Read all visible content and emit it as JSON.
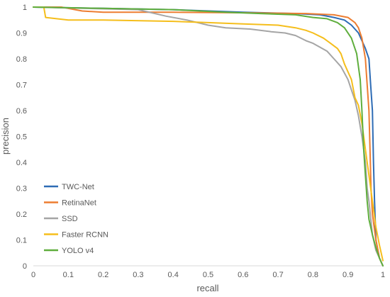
{
  "chart_data": {
    "type": "line",
    "title": "",
    "xlabel": "recall",
    "ylabel": "precision",
    "xlim": [
      0,
      1
    ],
    "ylim": [
      0,
      1
    ],
    "x_ticks": [
      "0",
      "0.1",
      "0.2",
      "0.3",
      "0.4",
      "0.5",
      "0.6",
      "0.7",
      "0.8",
      "0.9",
      "1"
    ],
    "y_ticks": [
      "0",
      "0.1",
      "0.2",
      "0.3",
      "0.4",
      "0.5",
      "0.6",
      "0.7",
      "0.8",
      "0.9",
      "1"
    ],
    "grid": false,
    "legend_position": "bottom-left",
    "series": [
      {
        "name": "TWC-Net",
        "color": "#2E6CB5",
        "points": [
          [
            0,
            1
          ],
          [
            0.2,
            0.995
          ],
          [
            0.4,
            0.99
          ],
          [
            0.6,
            0.98
          ],
          [
            0.75,
            0.975
          ],
          [
            0.82,
            0.97
          ],
          [
            0.86,
            0.96
          ],
          [
            0.89,
            0.95
          ],
          [
            0.91,
            0.93
          ],
          [
            0.93,
            0.9
          ],
          [
            0.94,
            0.87
          ],
          [
            0.95,
            0.84
          ],
          [
            0.96,
            0.8
          ],
          [
            0.965,
            0.7
          ],
          [
            0.97,
            0.6
          ],
          [
            0.973,
            0.4
          ],
          [
            0.976,
            0.25
          ],
          [
            0.98,
            0.1
          ],
          [
            0.99,
            0.03
          ],
          [
            1,
            0
          ]
        ]
      },
      {
        "name": "RetinaNet",
        "color": "#ED7D31",
        "points": [
          [
            0,
            1
          ],
          [
            0.08,
            1
          ],
          [
            0.14,
            0.985
          ],
          [
            0.2,
            0.98
          ],
          [
            0.4,
            0.98
          ],
          [
            0.6,
            0.978
          ],
          [
            0.78,
            0.975
          ],
          [
            0.86,
            0.97
          ],
          [
            0.9,
            0.96
          ],
          [
            0.92,
            0.94
          ],
          [
            0.93,
            0.92
          ],
          [
            0.94,
            0.88
          ],
          [
            0.95,
            0.8
          ],
          [
            0.955,
            0.7
          ],
          [
            0.96,
            0.6
          ],
          [
            0.963,
            0.45
          ],
          [
            0.966,
            0.3
          ],
          [
            0.97,
            0.2
          ],
          [
            0.98,
            0.1
          ],
          [
            0.99,
            0.03
          ],
          [
            1,
            0
          ]
        ]
      },
      {
        "name": "SSD",
        "color": "#A5A5A5",
        "points": [
          [
            0,
            1
          ],
          [
            0.3,
            0.99
          ],
          [
            0.38,
            0.965
          ],
          [
            0.44,
            0.95
          ],
          [
            0.5,
            0.93
          ],
          [
            0.55,
            0.92
          ],
          [
            0.62,
            0.915
          ],
          [
            0.68,
            0.905
          ],
          [
            0.72,
            0.9
          ],
          [
            0.75,
            0.89
          ],
          [
            0.78,
            0.87
          ],
          [
            0.8,
            0.86
          ],
          [
            0.82,
            0.845
          ],
          [
            0.84,
            0.83
          ],
          [
            0.86,
            0.8
          ],
          [
            0.88,
            0.77
          ],
          [
            0.9,
            0.72
          ],
          [
            0.91,
            0.68
          ],
          [
            0.92,
            0.64
          ],
          [
            0.93,
            0.58
          ],
          [
            0.94,
            0.5
          ],
          [
            0.945,
            0.45
          ],
          [
            0.95,
            0.4
          ],
          [
            0.955,
            0.3
          ],
          [
            0.96,
            0.25
          ],
          [
            0.97,
            0.12
          ],
          [
            0.98,
            0.06
          ],
          [
            0.99,
            0.03
          ],
          [
            1,
            0
          ]
        ]
      },
      {
        "name": "Faster RCNN",
        "color": "#F5BE1C",
        "points": [
          [
            0,
            1
          ],
          [
            0.03,
            1
          ],
          [
            0.035,
            0.96
          ],
          [
            0.1,
            0.95
          ],
          [
            0.2,
            0.95
          ],
          [
            0.4,
            0.945
          ],
          [
            0.5,
            0.94
          ],
          [
            0.6,
            0.935
          ],
          [
            0.7,
            0.93
          ],
          [
            0.75,
            0.92
          ],
          [
            0.78,
            0.91
          ],
          [
            0.8,
            0.9
          ],
          [
            0.83,
            0.88
          ],
          [
            0.85,
            0.86
          ],
          [
            0.87,
            0.84
          ],
          [
            0.88,
            0.82
          ],
          [
            0.89,
            0.78
          ],
          [
            0.9,
            0.75
          ],
          [
            0.91,
            0.72
          ],
          [
            0.92,
            0.65
          ],
          [
            0.93,
            0.62
          ],
          [
            0.94,
            0.55
          ],
          [
            0.945,
            0.5
          ],
          [
            0.95,
            0.45
          ],
          [
            0.96,
            0.35
          ],
          [
            0.97,
            0.25
          ],
          [
            0.98,
            0.15
          ],
          [
            0.99,
            0.08
          ],
          [
            1,
            0.02
          ]
        ]
      },
      {
        "name": "YOLO v4",
        "color": "#5FAE3D",
        "points": [
          [
            0,
            1
          ],
          [
            0.2,
            0.995
          ],
          [
            0.4,
            0.99
          ],
          [
            0.55,
            0.98
          ],
          [
            0.65,
            0.975
          ],
          [
            0.75,
            0.97
          ],
          [
            0.8,
            0.96
          ],
          [
            0.84,
            0.955
          ],
          [
            0.87,
            0.94
          ],
          [
            0.89,
            0.92
          ],
          [
            0.91,
            0.88
          ],
          [
            0.925,
            0.82
          ],
          [
            0.935,
            0.72
          ],
          [
            0.94,
            0.6
          ],
          [
            0.945,
            0.45
          ],
          [
            0.95,
            0.35
          ],
          [
            0.955,
            0.25
          ],
          [
            0.96,
            0.18
          ],
          [
            0.97,
            0.12
          ],
          [
            0.98,
            0.07
          ],
          [
            0.99,
            0.03
          ],
          [
            1,
            0
          ]
        ]
      }
    ]
  }
}
